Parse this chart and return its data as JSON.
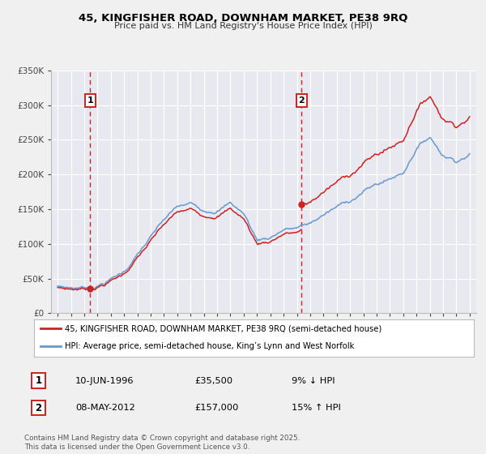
{
  "title": "45, KINGFISHER ROAD, DOWNHAM MARKET, PE38 9RQ",
  "subtitle": "Price paid vs. HM Land Registry's House Price Index (HPI)",
  "background_color": "#f0f0f0",
  "plot_background_color": "#e8e8f0",
  "grid_color": "#ffffff",
  "ylim": [
    0,
    350000
  ],
  "xlim_start": 1993.5,
  "xlim_end": 2025.5,
  "yticks": [
    0,
    50000,
    100000,
    150000,
    200000,
    250000,
    300000,
    350000
  ],
  "ytick_labels": [
    "£0",
    "£50K",
    "£100K",
    "£150K",
    "£200K",
    "£250K",
    "£300K",
    "£350K"
  ],
  "xticks": [
    1994,
    1995,
    1996,
    1997,
    1998,
    1999,
    2000,
    2001,
    2002,
    2003,
    2004,
    2005,
    2006,
    2007,
    2008,
    2009,
    2010,
    2011,
    2012,
    2013,
    2014,
    2015,
    2016,
    2017,
    2018,
    2019,
    2020,
    2021,
    2022,
    2023,
    2024,
    2025
  ],
  "hpi_color": "#6699cc",
  "price_color": "#cc2222",
  "vline_color": "#cc2222",
  "sale1_year": 1996.44,
  "sale1_price": 35500,
  "sale2_year": 2012.36,
  "sale2_price": 157000,
  "sale1_date": "10-JUN-1996",
  "sale1_amount": "£35,500",
  "sale1_pct": "9% ↓ HPI",
  "sale2_date": "08-MAY-2012",
  "sale2_amount": "£157,000",
  "sale2_pct": "15% ↑ HPI",
  "legend_line1": "45, KINGFISHER ROAD, DOWNHAM MARKET, PE38 9RQ (semi-detached house)",
  "legend_line2": "HPI: Average price, semi-detached house, King’s Lynn and West Norfolk",
  "footnote": "Contains HM Land Registry data © Crown copyright and database right 2025.\nThis data is licensed under the Open Government Licence v3.0.",
  "hpi_knots_x": [
    1994,
    1995,
    1996,
    1997,
    1998,
    1999,
    2000,
    2001,
    2002,
    2003,
    2004,
    2005,
    2006,
    2007,
    2008,
    2009,
    2010,
    2011,
    2012,
    2013,
    2014,
    2015,
    2016,
    2017,
    2018,
    2019,
    2020,
    2021,
    2022,
    2023,
    2024,
    2025
  ],
  "hpi_knots_y": [
    38000,
    36500,
    37500,
    42000,
    52000,
    63000,
    88000,
    112000,
    135000,
    152000,
    155000,
    148000,
    152000,
    163000,
    148000,
    110000,
    115000,
    128000,
    130000,
    135000,
    148000,
    158000,
    168000,
    182000,
    192000,
    200000,
    210000,
    248000,
    265000,
    240000,
    235000,
    246000
  ]
}
